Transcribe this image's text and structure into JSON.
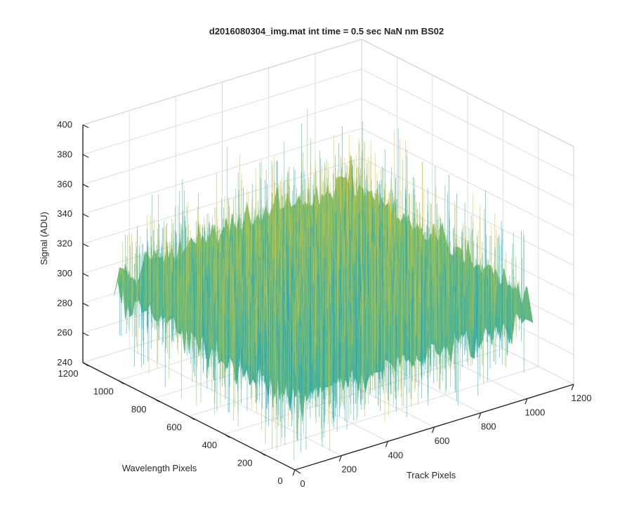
{
  "chart_data": {
    "type": "surface",
    "title": "d2016080304_img.mat int time = 0.5 sec  NaN nm BS02",
    "xlabel": "Track Pixels",
    "ylabel": "Wavelength Pixels",
    "zlabel": "Signal (ADU)",
    "xlim": [
      0,
      1200
    ],
    "ylim": [
      0,
      1200
    ],
    "zlim": [
      240,
      400
    ],
    "xticks": [
      0,
      200,
      400,
      600,
      800,
      1000,
      1200
    ],
    "yticks": [
      0,
      200,
      400,
      600,
      800,
      1000,
      1200
    ],
    "zticks": [
      240,
      260,
      280,
      300,
      320,
      340,
      360,
      380,
      400
    ],
    "grid": true,
    "data_extent": {
      "x": [
        0,
        1024
      ],
      "y": [
        0,
        1024
      ]
    },
    "surface": {
      "mean_signal": 310,
      "noise_range": [
        245,
        385
      ],
      "corner_levels": {
        "x0_y0": 292,
        "x1024_y0": 300,
        "x0_y1024": 305,
        "x1024_y1024": 318
      }
    },
    "colors": {
      "low": "#1aa6c9",
      "mid": "#7cbf6a",
      "high": "#d9c23a"
    }
  }
}
